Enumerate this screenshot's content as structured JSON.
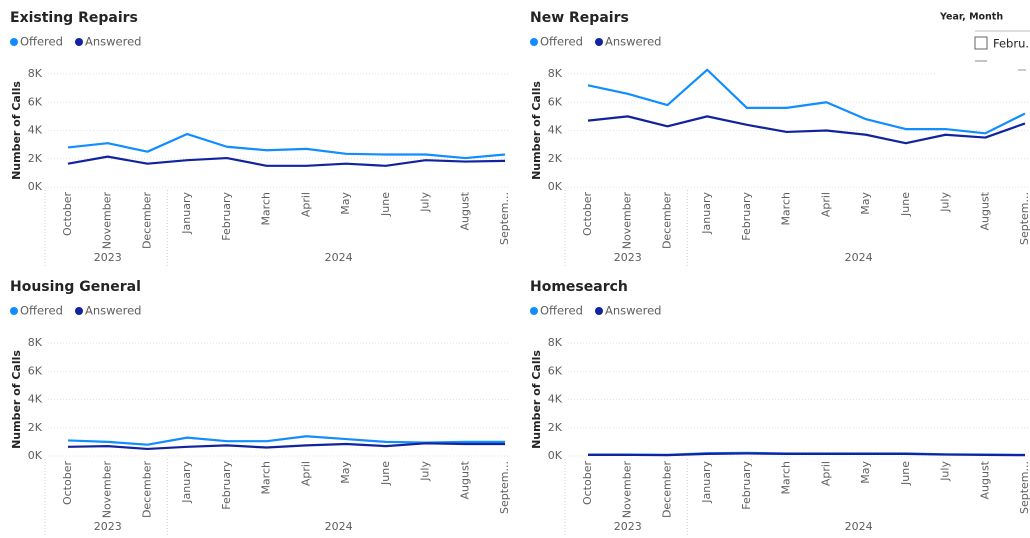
{
  "chart_data": [
    {
      "type": "line",
      "title": "Existing Repairs",
      "y_label": "Number of Calls",
      "categories": [
        "October",
        "November",
        "December",
        "January",
        "February",
        "March",
        "April",
        "May",
        "June",
        "July",
        "August",
        "Septem..."
      ],
      "x_groups": [
        {
          "label": "2023",
          "count": 3
        },
        {
          "label": "2024",
          "count": 9
        }
      ],
      "ylim": [
        0,
        8000
      ],
      "yticks": [
        {
          "value": 0,
          "label": "0K"
        },
        {
          "value": 2000,
          "label": "2K"
        },
        {
          "value": 4000,
          "label": "4K"
        },
        {
          "value": 6000,
          "label": "6K"
        },
        {
          "value": 8000,
          "label": "8K"
        }
      ],
      "grid": true,
      "series": [
        {
          "name": "Offered",
          "color": "#118dff",
          "values": [
            2800,
            3100,
            2500,
            3750,
            2850,
            2600,
            2700,
            2350,
            2300,
            2300,
            2050,
            2300
          ]
        },
        {
          "name": "Answered",
          "color": "#12239e",
          "values": [
            1650,
            2150,
            1650,
            1900,
            2050,
            1500,
            1500,
            1650,
            1500,
            1900,
            1800,
            1850
          ]
        }
      ]
    },
    {
      "type": "line",
      "title": "New Repairs",
      "y_label": "Number of Calls",
      "categories": [
        "October",
        "November",
        "December",
        "January",
        "February",
        "March",
        "April",
        "May",
        "June",
        "July",
        "August",
        "Septem..."
      ],
      "x_groups": [
        {
          "label": "2023",
          "count": 3
        },
        {
          "label": "2024",
          "count": 9
        }
      ],
      "ylim": [
        0,
        8000
      ],
      "yticks": [
        {
          "value": 0,
          "label": "0K"
        },
        {
          "value": 2000,
          "label": "2K"
        },
        {
          "value": 4000,
          "label": "4K"
        },
        {
          "value": 6000,
          "label": "6K"
        },
        {
          "value": 8000,
          "label": "8K"
        }
      ],
      "grid": true,
      "series": [
        {
          "name": "Offered",
          "color": "#118dff",
          "values": [
            7200,
            6600,
            5800,
            8300,
            5600,
            5600,
            6000,
            4800,
            4100,
            4100,
            3800,
            5200
          ]
        },
        {
          "name": "Answered",
          "color": "#12239e",
          "values": [
            4700,
            5000,
            4300,
            5000,
            4400,
            3900,
            4000,
            3700,
            3100,
            3700,
            3500,
            4500
          ]
        }
      ]
    },
    {
      "type": "line",
      "title": "Housing General",
      "y_label": "Number of Calls",
      "categories": [
        "October",
        "November",
        "December",
        "January",
        "February",
        "March",
        "April",
        "May",
        "June",
        "July",
        "August",
        "Septem..."
      ],
      "x_groups": [
        {
          "label": "2023",
          "count": 3
        },
        {
          "label": "2024",
          "count": 9
        }
      ],
      "ylim": [
        0,
        8000
      ],
      "yticks": [
        {
          "value": 0,
          "label": "0K"
        },
        {
          "value": 2000,
          "label": "2K"
        },
        {
          "value": 4000,
          "label": "4K"
        },
        {
          "value": 6000,
          "label": "6K"
        },
        {
          "value": 8000,
          "label": "8K"
        }
      ],
      "grid": true,
      "series": [
        {
          "name": "Offered",
          "color": "#118dff",
          "values": [
            1100,
            1000,
            800,
            1300,
            1050,
            1050,
            1400,
            1200,
            1000,
            950,
            1000,
            1000
          ]
        },
        {
          "name": "Answered",
          "color": "#12239e",
          "values": [
            650,
            700,
            500,
            650,
            750,
            600,
            750,
            850,
            700,
            900,
            850,
            850
          ]
        }
      ]
    },
    {
      "type": "line",
      "title": "Homesearch",
      "y_label": "Number of Calls",
      "categories": [
        "October",
        "November",
        "December",
        "January",
        "February",
        "March",
        "April",
        "May",
        "June",
        "July",
        "August",
        "Septem..."
      ],
      "x_groups": [
        {
          "label": "2023",
          "count": 3
        },
        {
          "label": "2024",
          "count": 9
        }
      ],
      "ylim": [
        0,
        8000
      ],
      "yticks": [
        {
          "value": 0,
          "label": "0K"
        },
        {
          "value": 2000,
          "label": "2K"
        },
        {
          "value": 4000,
          "label": "4K"
        },
        {
          "value": 6000,
          "label": "6K"
        },
        {
          "value": 8000,
          "label": "8K"
        }
      ],
      "grid": true,
      "series": [
        {
          "name": "Offered",
          "color": "#118dff",
          "values": [
            100,
            100,
            80,
            200,
            220,
            180,
            180,
            180,
            180,
            120,
            100,
            80
          ]
        },
        {
          "name": "Answered",
          "color": "#12239e",
          "values": [
            80,
            80,
            60,
            150,
            180,
            150,
            150,
            150,
            150,
            100,
            80,
            60
          ]
        }
      ]
    }
  ],
  "slicer": {
    "title": "Year, Month",
    "items": [
      "Febru..."
    ]
  }
}
